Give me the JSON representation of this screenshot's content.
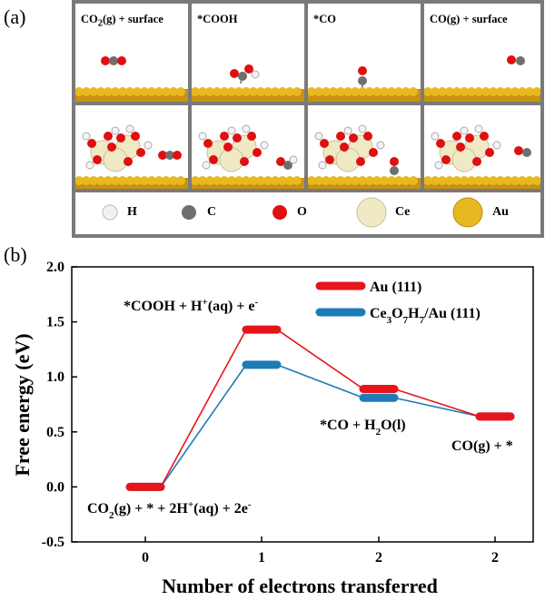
{
  "panel_a": {
    "label": "(a)",
    "columns": [
      {
        "title_parts": [
          "CO",
          "2",
          "(g) + surface"
        ]
      },
      {
        "title_parts": [
          "*COOH",
          "",
          ""
        ]
      },
      {
        "title_parts": [
          "*CO",
          "",
          ""
        ]
      },
      {
        "title_parts": [
          "CO(g) + surface",
          "",
          ""
        ]
      }
    ],
    "legend": [
      {
        "symbol": "H",
        "color": "#f2f2f2"
      },
      {
        "symbol": "C",
        "color": "#6f6f6f"
      },
      {
        "symbol": "O",
        "color": "#e01010"
      },
      {
        "symbol": "Ce",
        "color": "#efe9c4"
      },
      {
        "symbol": "Au",
        "color": "#e8b820"
      }
    ],
    "colors": {
      "au_surface": "#d9a21c",
      "frame": "#7a7a7a"
    }
  },
  "panel_b": {
    "label": "(b)",
    "legend": [
      {
        "parts": [
          "Au (111)"
        ],
        "color": "#e8141c"
      },
      {
        "parts": [
          "Ce",
          "3",
          "O",
          "7",
          "H",
          "7",
          "/Au (111)"
        ],
        "color": "#1f7ab8"
      }
    ],
    "annotations": [
      {
        "parts": [
          "*COOH + H",
          "+",
          "(aq) + e",
          "-"
        ]
      },
      {
        "parts": [
          "*CO + H",
          "2",
          "O(l)"
        ]
      },
      {
        "parts": [
          "CO(g) + *"
        ]
      },
      {
        "parts": [
          "CO",
          "2",
          "(g) + * + 2H",
          "+",
          "(aq) + 2e",
          "-"
        ]
      }
    ]
  },
  "chart_data": {
    "type": "line",
    "xlabel": "Number of electrons transferred",
    "ylabel": "Free energy (eV)",
    "categories": [
      "0",
      "1",
      "2",
      "2"
    ],
    "ylim": [
      -0.5,
      2.0
    ],
    "yticks": [
      "-0.5",
      "0.0",
      "0.5",
      "1.0",
      "1.5",
      "2.0"
    ],
    "series": [
      {
        "name": "Au (111)",
        "color": "#e8141c",
        "values": [
          0.0,
          1.43,
          0.89,
          0.64
        ]
      },
      {
        "name": "Ce3O7H7/Au (111)",
        "color": "#1f7ab8",
        "values": [
          0.0,
          1.11,
          0.81,
          0.64
        ]
      }
    ]
  }
}
